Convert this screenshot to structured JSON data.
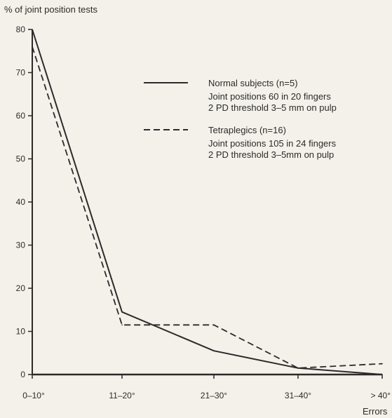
{
  "chart_data": {
    "type": "line",
    "title": "",
    "ylabel": "% of joint position tests",
    "xlabel": "Errors",
    "categories": [
      "0–10°",
      "11–20°",
      "21–30°",
      "31–40°",
      "> 40°"
    ],
    "yticks": [
      0,
      10,
      20,
      30,
      40,
      50,
      60,
      70,
      80
    ],
    "ylim": [
      0,
      80
    ],
    "grid": false,
    "legend_position": "top-right",
    "series": [
      {
        "name": "Normal subjects (n=5)",
        "details": [
          "Joint positions 60 in 20 fingers",
          "2 PD threshold 3–5 mm on pulp"
        ],
        "style": "solid",
        "values": [
          80,
          14.5,
          5.5,
          1.5,
          0
        ]
      },
      {
        "name": "Tetraplegics (n=16)",
        "details": [
          "Joint positions 105 in 24 fingers",
          "2 PD threshold 3–5mm on pulp"
        ],
        "style": "dashed",
        "values": [
          76,
          11.5,
          11.5,
          1.5,
          2.5
        ]
      }
    ],
    "colors": {
      "line": "#2b2b2b",
      "background": "#f4f1ea"
    }
  }
}
